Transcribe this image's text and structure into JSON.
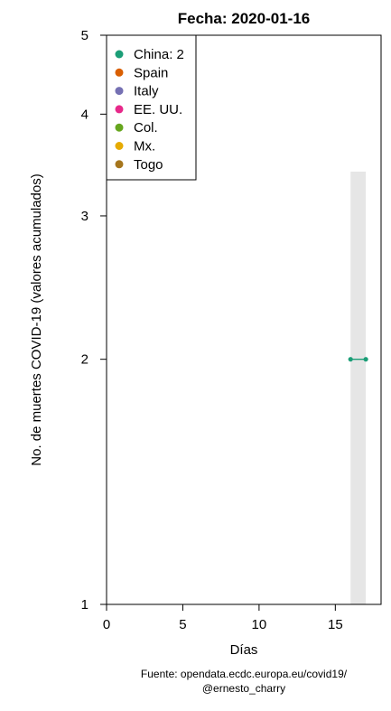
{
  "chart_data": {
    "type": "line",
    "title": "Fecha: 2020-01-16",
    "xlabel": "Días",
    "ylabel": "No. de muertes COVID-19 (valores acumulados)",
    "y_scale": "log",
    "xlim": [
      0,
      18
    ],
    "ylim": [
      1,
      5
    ],
    "x_ticks": [
      0,
      5,
      10,
      15
    ],
    "y_ticks": [
      1,
      2,
      3,
      4,
      5
    ],
    "grid": false,
    "legend_position": "top-left",
    "legend": [
      {
        "label": "China: 2",
        "color": "#1b9e77"
      },
      {
        "label": "Spain",
        "color": "#d95f02"
      },
      {
        "label": "Italy",
        "color": "#7570b3"
      },
      {
        "label": "EE. UU.",
        "color": "#e7298a"
      },
      {
        "label": "Col.",
        "color": "#66a61e"
      },
      {
        "label": "Mx.",
        "color": "#e6ab02"
      },
      {
        "label": "Togo",
        "color": "#a6761d"
      }
    ],
    "highlight_band": {
      "x": [
        16,
        17
      ],
      "y": [
        1,
        3.4
      ],
      "color": "#e6e6e6"
    },
    "series": [
      {
        "name": "China",
        "color": "#1b9e77",
        "x": [
          16,
          17
        ],
        "y": [
          2,
          2
        ]
      }
    ]
  },
  "footer": {
    "source": "Fuente: opendata.ecdc.europa.eu/covid19/",
    "author": "@ernesto_charry"
  }
}
